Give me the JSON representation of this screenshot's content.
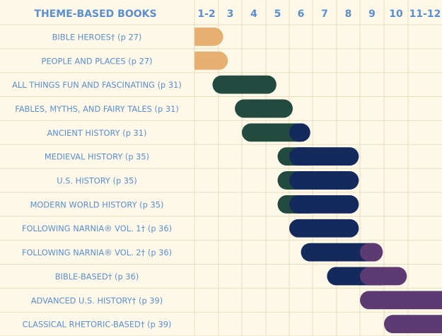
{
  "chart_data": {
    "type": "bar",
    "title": "THEME-BASED BOOKS",
    "grade_columns": [
      "1-2",
      "3",
      "4",
      "5",
      "6",
      "7",
      "8",
      "9",
      "10",
      "11-12"
    ],
    "rows": [
      {
        "label": "BIBLE HEROES† (p 27)",
        "segments": [
          {
            "start": 0.0,
            "end": 1.2,
            "color": "#e8b070"
          }
        ]
      },
      {
        "label": "PEOPLE AND PLACES (p 27)",
        "segments": [
          {
            "start": 0.0,
            "end": 1.4,
            "color": "#e8b070"
          }
        ]
      },
      {
        "label": "ALL THINGS FUN AND FASCINATING (p 31)",
        "segments": [
          {
            "start": 0.75,
            "end": 3.45,
            "color": "#234a3e"
          }
        ]
      },
      {
        "label": "FABLES, MYTHS, AND FAIRY TALES (p 31)",
        "segments": [
          {
            "start": 1.7,
            "end": 4.15,
            "color": "#234a3e"
          }
        ]
      },
      {
        "label": "ANCIENT HISTORY (p 31)",
        "segments": [
          {
            "start": 2.0,
            "end": 4.0,
            "color": "#234a3e"
          },
          {
            "start": 4.0,
            "end": 4.9,
            "color": "#142a5c"
          }
        ]
      },
      {
        "label": "MEDIEVAL HISTORY (p 35)",
        "segments": [
          {
            "start": 3.5,
            "end": 4.0,
            "color": "#234a3e"
          },
          {
            "start": 4.0,
            "end": 6.95,
            "color": "#142a5c"
          }
        ]
      },
      {
        "label": "U.S. HISTORY (p 35)",
        "segments": [
          {
            "start": 3.5,
            "end": 4.0,
            "color": "#234a3e"
          },
          {
            "start": 4.0,
            "end": 6.95,
            "color": "#142a5c"
          }
        ]
      },
      {
        "label": "MODERN WORLD HISTORY (p 35)",
        "segments": [
          {
            "start": 3.5,
            "end": 4.0,
            "color": "#234a3e"
          },
          {
            "start": 4.0,
            "end": 6.95,
            "color": "#142a5c"
          }
        ]
      },
      {
        "label": "FOLLOWING NARNIA® VOL. 1† (p 36)",
        "segments": [
          {
            "start": 4.0,
            "end": 6.95,
            "color": "#142a5c"
          }
        ]
      },
      {
        "label": "FOLLOWING NARNIA® VOL. 2† (p 36)",
        "segments": [
          {
            "start": 4.5,
            "end": 7.0,
            "color": "#142a5c"
          },
          {
            "start": 7.0,
            "end": 7.95,
            "color": "#5e3a72"
          }
        ]
      },
      {
        "label": "BIBLE-BASED† (p 36)",
        "segments": [
          {
            "start": 5.6,
            "end": 7.0,
            "color": "#142a5c"
          },
          {
            "start": 7.0,
            "end": 8.95,
            "color": "#5e3a72"
          }
        ]
      },
      {
        "label": "ADVANCED U.S. HISTORY† (p 39)",
        "segments": [
          {
            "start": 7.0,
            "end": 10.0,
            "color": "#5e3a72"
          }
        ]
      },
      {
        "label": "CLASSICAL RHETORIC-BASED† (p 39)",
        "segments": [
          {
            "start": 8.0,
            "end": 10.0,
            "color": "#5e3a72"
          }
        ]
      }
    ],
    "colors": {
      "background": "#fdf8e8",
      "grid": "#e9ddbf",
      "text": "#5b8fcf",
      "early": "#e8b070",
      "green": "#234a3e",
      "navy": "#142a5c",
      "purple": "#5e3a72"
    }
  }
}
